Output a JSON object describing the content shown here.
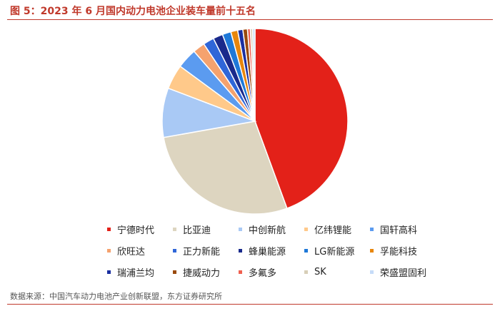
{
  "title": "图 5：2023 年 6 月国内动力电池企业装车量前十五名",
  "source": "数据来源：中国汽车动力电池产业创新联盟，东方证券研究所",
  "chart_data": {
    "type": "pie",
    "legend_placement": "bottom",
    "slices": [
      {
        "name": "宁德时代",
        "value": 44.4,
        "color": "#e32119"
      },
      {
        "name": "比亚迪",
        "value": 27.8,
        "color": "#ddd5c0"
      },
      {
        "name": "中创新航",
        "value": 8.6,
        "color": "#a9c9f5"
      },
      {
        "name": "亿纬锂能",
        "value": 4.3,
        "color": "#ffc98a"
      },
      {
        "name": "国轩高科",
        "value": 3.5,
        "color": "#5b9bf0"
      },
      {
        "name": "欣旺达",
        "value": 2.1,
        "color": "#f5a26e"
      },
      {
        "name": "正力新能",
        "value": 1.9,
        "color": "#2f66d8"
      },
      {
        "name": "蜂巢能源",
        "value": 1.7,
        "color": "#1a2a8c"
      },
      {
        "name": "LG新能源",
        "value": 1.5,
        "color": "#1e78d8"
      },
      {
        "name": "孚能科技",
        "value": 1.2,
        "color": "#e8860c"
      },
      {
        "name": "瑞浦兰均",
        "value": 0.9,
        "color": "#1a2fa0"
      },
      {
        "name": "捷威动力",
        "value": 0.8,
        "color": "#9a4a0c"
      },
      {
        "name": "多氟多",
        "value": 0.5,
        "color": "#f06050"
      },
      {
        "name": "SK",
        "value": 0.4,
        "color": "#d8cfb8"
      },
      {
        "name": "荣盛盟固利",
        "value": 0.4,
        "color": "#c6dcf8"
      }
    ]
  }
}
